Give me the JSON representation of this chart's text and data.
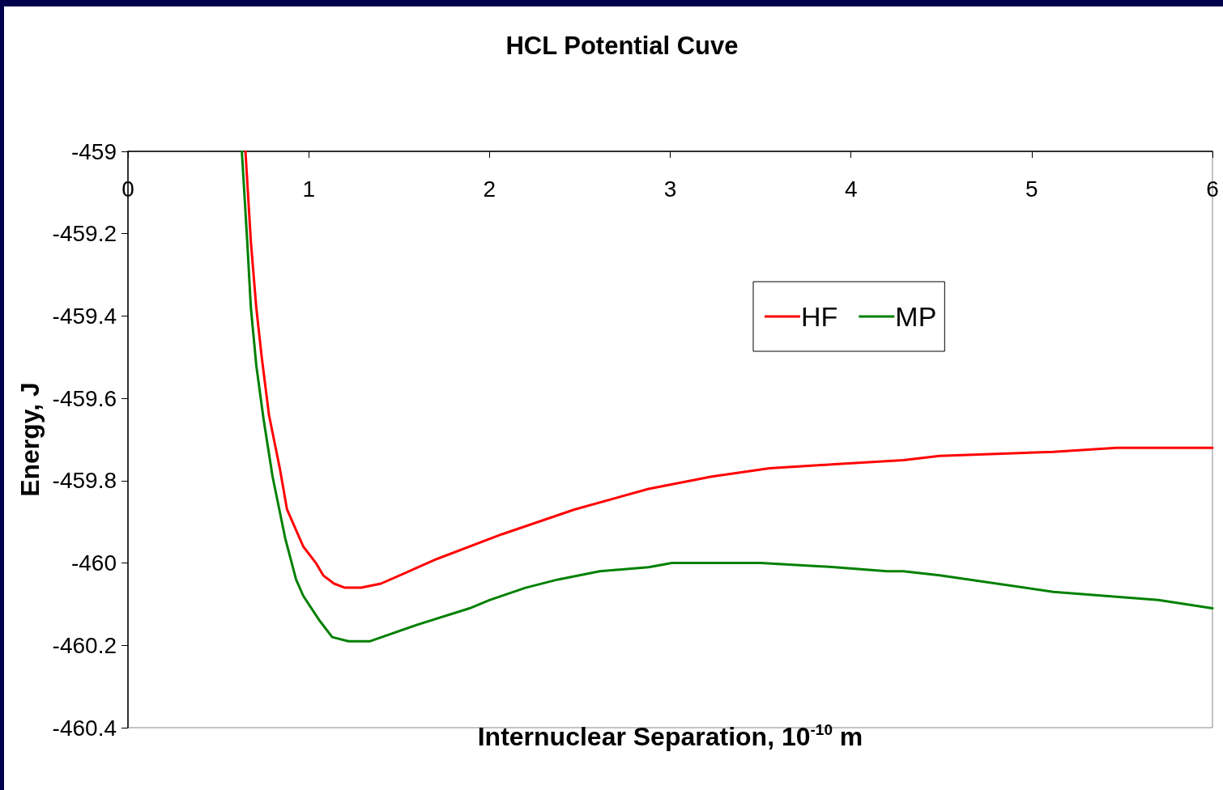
{
  "chart_data": {
    "type": "line",
    "title": "HCL Potential Cuve",
    "xlabel": "Internuclear Separation, 10$^{-10}$ m",
    "ylabel": "Energy, J",
    "xlim": [
      0,
      6
    ],
    "xticks": [
      0,
      1,
      2,
      3,
      4,
      5,
      6
    ],
    "ylim": [
      -460.4,
      -459
    ],
    "yticks": [
      -460.4,
      -460.2,
      -460,
      -459.8,
      -459.6,
      -459.4,
      -459.2,
      -459
    ],
    "legend": "top right",
    "marker": "none",
    "line_style": "solid",
    "series": [
      {
        "name": "HF",
        "color": "#ff0000",
        "x": [
          0.65,
          0.68,
          0.71,
          0.74,
          0.78,
          0.84,
          0.88,
          0.93,
          0.97,
          1.04,
          1.08,
          1.14,
          1.2,
          1.29,
          1.4,
          1.71,
          2.07,
          2.47,
          2.88,
          3.23,
          3.55,
          3.91,
          4.29,
          4.49,
          5.12,
          5.47,
          5.7,
          5.79,
          6
        ],
        "values": [
          -459.0,
          -459.22,
          -459.38,
          -459.5,
          -459.64,
          -459.77,
          -459.87,
          -459.92,
          -459.96,
          -460.0,
          -460.03,
          -460.05,
          -460.06,
          -460.06,
          -460.05,
          -459.99,
          -459.93,
          -459.87,
          -459.82,
          -459.79,
          -459.77,
          -459.76,
          -459.75,
          -459.74,
          -459.73,
          -459.72,
          -459.72,
          -459.72,
          -459.72
        ]
      },
      {
        "name": "MP",
        "color": "#008000",
        "x": [
          0.63,
          0.66,
          0.68,
          0.71,
          0.75,
          0.8,
          0.87,
          0.93,
          0.97,
          1.06,
          1.13,
          1.22,
          1.34,
          1.6,
          1.89,
          2.0,
          2.2,
          2.38,
          2.61,
          2.88,
          3.01,
          3.3,
          3.5,
          3.91,
          4.2,
          4.29,
          4.49,
          5.12,
          5.7,
          6
        ],
        "values": [
          -459.0,
          -459.22,
          -459.38,
          -459.52,
          -459.65,
          -459.79,
          -459.94,
          -460.04,
          -460.08,
          -460.14,
          -460.18,
          -460.19,
          -460.19,
          -460.15,
          -460.11,
          -460.09,
          -460.06,
          -460.04,
          -460.02,
          -460.01,
          -460.0,
          -460.0,
          -460.0,
          -460.01,
          -460.02,
          -460.02,
          -460.03,
          -460.07,
          -460.09,
          -460.11
        ]
      }
    ]
  }
}
